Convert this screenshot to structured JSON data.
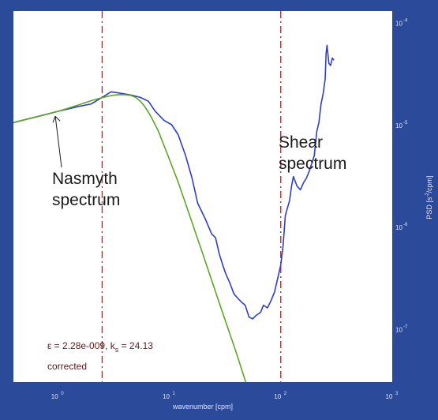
{
  "chart_data": {
    "type": "line",
    "xlabel": "wavenumber [cpm]",
    "ylabel": "PSD [s^-2/cpm]",
    "xscale": "log",
    "yscale": "log",
    "xlim": [
      0.4,
      1000
    ],
    "ylim": [
      3e-08,
      0.00013
    ],
    "x_ticks": [
      {
        "value": 1,
        "base": "10",
        "exp": "0"
      },
      {
        "value": 10,
        "base": "10",
        "exp": "1"
      },
      {
        "value": 100,
        "base": "10",
        "exp": "2"
      },
      {
        "value": 1000,
        "base": "10",
        "exp": "3"
      }
    ],
    "y_ticks": [
      {
        "value": 1e-07,
        "base": "10",
        "exp": "-7"
      },
      {
        "value": 1e-06,
        "base": "10",
        "exp": "-6"
      },
      {
        "value": 1e-05,
        "base": "10",
        "exp": "-5"
      },
      {
        "value": 0.0001,
        "base": "10",
        "exp": "-4"
      }
    ],
    "vlines": [
      {
        "x": 2.5,
        "color": "#ff0000",
        "style": "dash-dot"
      },
      {
        "x": 100,
        "color": "#ff0000",
        "style": "dash-dot"
      }
    ],
    "series": [
      {
        "color": "#2e3fc4",
        "x": [
          0.4,
          1.0,
          1.5,
          2.0,
          2.6,
          3.0,
          3.5,
          4.0,
          4.6,
          5.5,
          6.5,
          7.5,
          9.0,
          10.5,
          12.0,
          14.0,
          16.0,
          18.0,
          21.0,
          24.0,
          26.0,
          28.0,
          30.0,
          32.0,
          35.0,
          38.0,
          41.0,
          45.0,
          48.0,
          52.0,
          56.0,
          60.0,
          66.0,
          70.0,
          76.0,
          82.0,
          88.0,
          95.0,
          100.0,
          105.0,
          110.0,
          120.0,
          125.0,
          130.0,
          140.0,
          150.0,
          160.0,
          170.0,
          180.0,
          190.0,
          200.0,
          210.0,
          220.0,
          230.0,
          240.0,
          250.0,
          255.0,
          260.0,
          270.0,
          280.0,
          290.0,
          300.0
        ],
        "y": [
          1.05e-05,
          1.35e-05,
          1.5e-05,
          1.6e-05,
          1.9e-05,
          2.1e-05,
          2.05e-05,
          2e-05,
          1.95e-05,
          1.85e-05,
          1.7e-05,
          1.35e-05,
          1.1e-05,
          1e-05,
          8e-06,
          5e-06,
          3e-06,
          1.7e-06,
          1.2e-06,
          8.5e-07,
          7.8e-07,
          5.5e-07,
          4.3e-07,
          3.5e-07,
          2.8e-07,
          2.2e-07,
          2e-07,
          1.8e-07,
          1.7e-07,
          1.3e-07,
          1.25e-07,
          1.35e-07,
          1.45e-07,
          1.7e-07,
          1.6e-07,
          1.9e-07,
          2.3e-07,
          3.3e-07,
          4.2e-07,
          6.5e-07,
          1.3e-06,
          1.8e-06,
          2.5e-06,
          3.1e-06,
          2.5e-06,
          2.3e-06,
          2.7e-06,
          3e-06,
          3.5e-06,
          4.2e-06,
          5e-06,
          8.5e-06,
          1.05e-05,
          1.6e-05,
          2e-05,
          2.8e-05,
          5e-05,
          6e-05,
          4e-05,
          3.8e-05,
          4.5e-05,
          4.3e-05
        ]
      },
      {
        "color": "#5ea626",
        "x": [
          0.4,
          0.7,
          1.0,
          1.5,
          2.0,
          2.5,
          3.0,
          3.5,
          4.0,
          4.5,
          5.0,
          5.5,
          6.0,
          6.5,
          7.0,
          8.0,
          9.0,
          10.0,
          12.0,
          15.0,
          20.0,
          30.0,
          40.0,
          50.0,
          55.0
        ],
        "y": [
          1.05e-05,
          1.22e-05,
          1.35e-05,
          1.55e-05,
          1.72e-05,
          1.84e-05,
          1.93e-05,
          1.97e-05,
          1.97e-05,
          1.94e-05,
          1.85e-05,
          1.7e-05,
          1.52e-05,
          1.33e-05,
          1.15e-05,
          8.6e-06,
          6.2e-06,
          4.6e-06,
          2.75e-06,
          1.35e-06,
          5.4e-07,
          1.45e-07,
          5.8e-08,
          2.7e-08,
          1.9e-08
        ]
      }
    ],
    "annotations": {
      "nasmyth_line1": "Nasmyth",
      "nasmyth_line2": "spectrum",
      "nasmyth_arrow_target": [
        0.95,
        1.3e-05
      ],
      "shear_line1": "Shear",
      "shear_line2": "spectrum",
      "stat_prefix": "ε = 2.28e-009, k",
      "stat_sub": "s",
      "stat_suffix": " = 24.13",
      "stat_line2": "corrected"
    }
  }
}
